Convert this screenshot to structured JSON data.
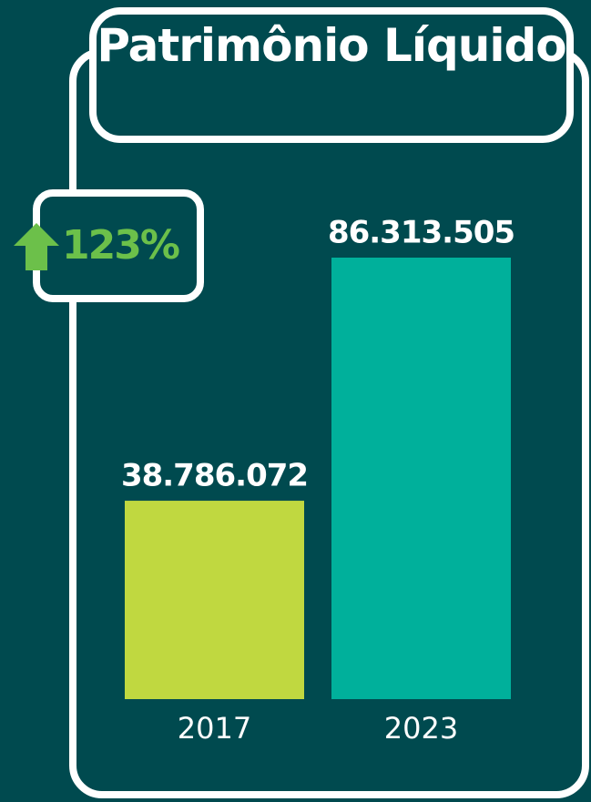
{
  "chart_data": {
    "type": "bar",
    "title": "Patrimônio Líquido",
    "annotation": "123%",
    "categories": [
      "2017",
      "2023"
    ],
    "values": [
      38786072,
      86313505
    ],
    "value_labels": [
      "38.786.072",
      "86.313.505"
    ],
    "colors": [
      "#c0d840",
      "#00b09b"
    ]
  }
}
